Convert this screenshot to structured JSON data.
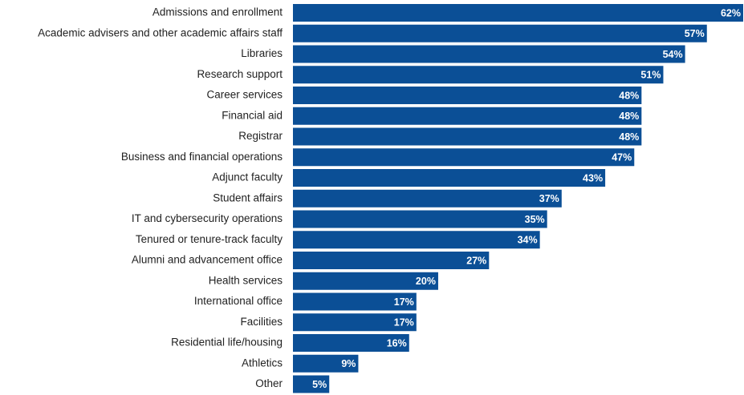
{
  "chart_data": {
    "type": "bar",
    "orientation": "horizontal",
    "color": "#0b4f96",
    "categories": [
      "Admissions and enrollment",
      "Academic advisers and other academic affairs staff",
      "Libraries",
      "Research support",
      "Career services",
      "Financial aid",
      "Registrar",
      "Business and financial operations",
      "Adjunct faculty",
      "Student affairs",
      "IT and cybersecurity operations",
      "Tenured or tenure-track faculty",
      "Alumni and advancement office",
      "Health services",
      "International office",
      "Facilities",
      "Residential life/housing",
      "Athletics",
      "Other"
    ],
    "values": [
      62,
      57,
      54,
      51,
      48,
      48,
      48,
      47,
      43,
      37,
      35,
      34,
      27,
      20,
      17,
      17,
      16,
      9,
      5
    ],
    "value_labels": [
      "62%",
      "57%",
      "54%",
      "51%",
      "48%",
      "48%",
      "48%",
      "47%",
      "43%",
      "37%",
      "35%",
      "34%",
      "27%",
      "20%",
      "17%",
      "17%",
      "16%",
      "9%",
      "5%"
    ]
  }
}
